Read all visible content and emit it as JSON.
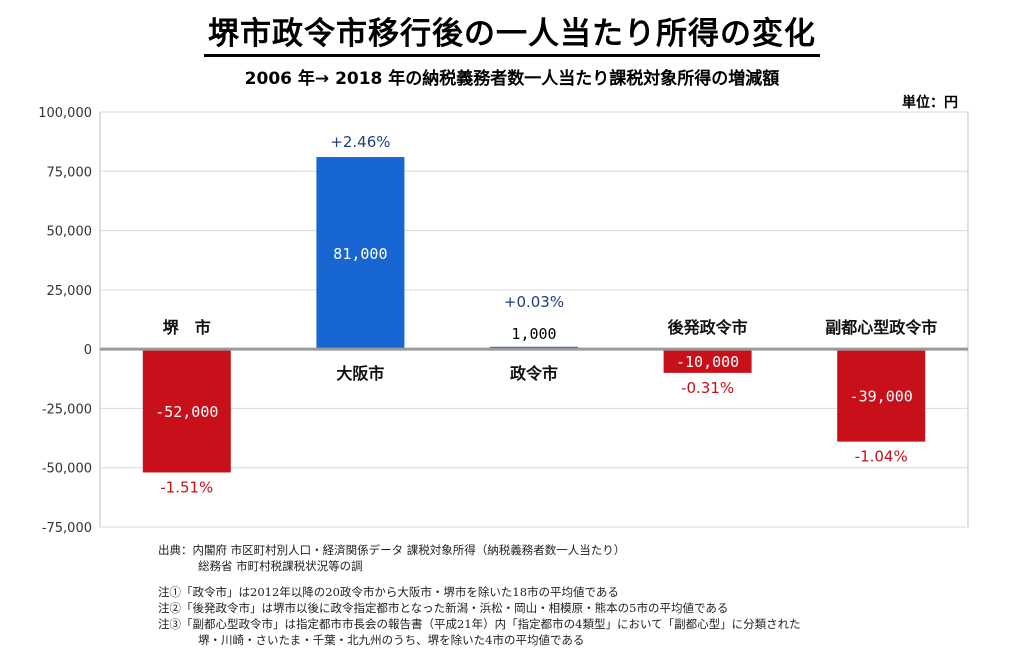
{
  "chart_data": {
    "type": "bar",
    "title": "堺市政令市移行後の一人当たり所得の変化",
    "subtitle": "2006 年→ 2018 年の納税義務者数一人当たり課税対象所得の増減額",
    "unit_label": "単位：円",
    "categories": [
      "堺　市",
      "大阪市",
      "政令市",
      "後発政令市",
      "副都心型政令市"
    ],
    "values": [
      -52000,
      81000,
      1000,
      -10000,
      -39000
    ],
    "value_labels": [
      "-52,000",
      "81,000",
      "1,000",
      "-10,000",
      "-39,000"
    ],
    "pct_labels": [
      "-1.51%",
      "+2.46%",
      "+0.03%",
      "-0.31%",
      "-1.04%"
    ],
    "colors": {
      "positive": "#1766d1",
      "negative": "#c8101a",
      "pos_text": "#1f3f7a",
      "neg_text": "#c8101a",
      "zero_line": "#9a9a9a"
    },
    "ylim": [
      -75000,
      100000
    ],
    "yticks": [
      100000,
      75000,
      50000,
      25000,
      0,
      -25000,
      -50000,
      -75000
    ],
    "ytick_labels": [
      "100,000",
      "75,000",
      "50,000",
      "25,000",
      "0",
      "-25,000",
      "-50,000",
      "-75,000"
    ],
    "grid": true
  },
  "notes": {
    "source_line1": "出典：内閣府 市区町村別人口・経済関係データ 課税対象所得（納税義務者数一人当たり）",
    "source_line2": "総務省 市町村税課税状況等の調",
    "note1": "注①「政令市」は2012年以降の20政令市から大阪市・堺市を除いた18市の平均値である",
    "note2": "注②「後発政令市」は堺市以後に政令指定都市となった新潟・浜松・岡山・相模原・熊本の5市の平均値である",
    "note3a": "注③「副都心型政令市」は指定都市市長会の報告書（平成21年）内「指定都市の4類型」において「副都心型」に分類された",
    "note3b": "堺・川崎・さいたま・千葉・北九州のうち、堺を除いた4市の平均値である"
  }
}
